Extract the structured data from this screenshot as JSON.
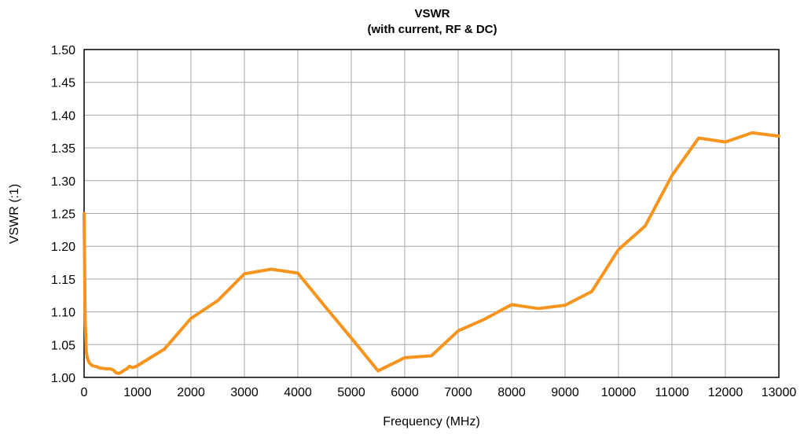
{
  "chart_data": {
    "type": "line",
    "title": "VSWR",
    "subtitle": "(with current, RF & DC)",
    "xlabel": "Frequency (MHz)",
    "ylabel": "VSWR (:1)",
    "xlim": [
      0,
      13000
    ],
    "ylim": [
      1.0,
      1.5
    ],
    "xticks": [
      0,
      1000,
      2000,
      3000,
      4000,
      5000,
      6000,
      7000,
      8000,
      9000,
      10000,
      11000,
      12000,
      13000
    ],
    "yticks": [
      "1.00",
      "1.05",
      "1.10",
      "1.15",
      "1.20",
      "1.25",
      "1.30",
      "1.35",
      "1.40",
      "1.45",
      "1.50"
    ],
    "grid": true,
    "series": [
      {
        "color": "#f7941d",
        "x": [
          0,
          20,
          40,
          60,
          80,
          100,
          150,
          200,
          250,
          300,
          350,
          400,
          450,
          500,
          550,
          600,
          650,
          700,
          750,
          800,
          850,
          900,
          950,
          1000,
          1500,
          2000,
          2500,
          3000,
          3500,
          4000,
          4500,
          5000,
          5500,
          6000,
          6500,
          7000,
          7500,
          8000,
          8500,
          9000,
          9500,
          10000,
          10500,
          11000,
          11500,
          12000,
          12500,
          13000
        ],
        "y": [
          1.25,
          1.09,
          1.04,
          1.03,
          1.025,
          1.022,
          1.018,
          1.017,
          1.016,
          1.014,
          1.014,
          1.013,
          1.013,
          1.013,
          1.011,
          1.007,
          1.006,
          1.008,
          1.011,
          1.013,
          1.017,
          1.015,
          1.016,
          1.018,
          1.043,
          1.09,
          1.117,
          1.158,
          1.165,
          1.159,
          1.109,
          1.06,
          1.01,
          1.03,
          1.033,
          1.071,
          1.089,
          1.111,
          1.105,
          1.11,
          1.131,
          1.195,
          1.231,
          1.308,
          1.365,
          1.359,
          1.373,
          1.368
        ]
      }
    ]
  }
}
